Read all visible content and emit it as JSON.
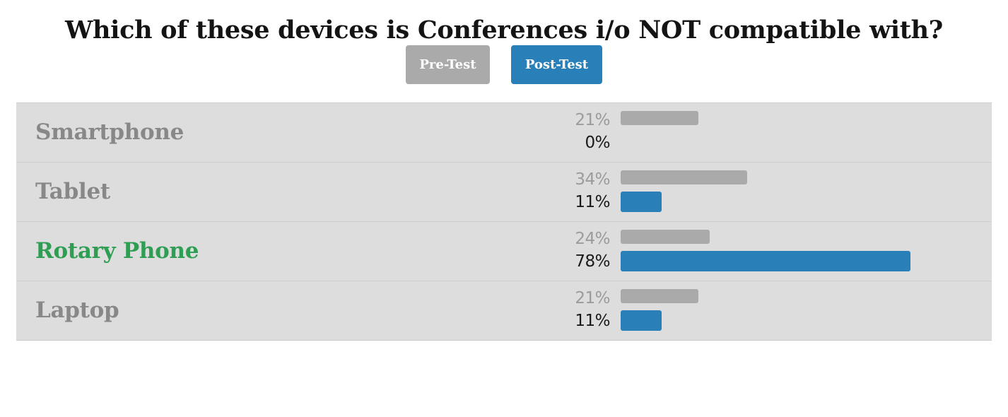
{
  "title": "Which of these devices is Conferences i/o NOT compatible with?",
  "buttons": {
    "pre_label": "Pre-Test",
    "post_label": "Post-Test"
  },
  "colors": {
    "pre": "#aaaaaa",
    "post": "#2980b9",
    "correct": "#2e9e52",
    "label": "#888888"
  },
  "chart_data": {
    "type": "bar",
    "orientation": "horizontal",
    "title": "Which of these devices is Conferences i/o NOT compatible with?",
    "categories": [
      "Smartphone",
      "Tablet",
      "Rotary Phone",
      "Laptop"
    ],
    "correct_category": "Rotary Phone",
    "series": [
      {
        "name": "Pre-Test",
        "values": [
          21,
          34,
          24,
          21
        ],
        "labels": [
          "21%",
          "34%",
          "24%",
          "21%"
        ]
      },
      {
        "name": "Post-Test",
        "values": [
          0,
          11,
          78,
          11
        ],
        "labels": [
          "0%",
          "11%",
          "78%",
          "11%"
        ]
      }
    ],
    "ylim": [
      0,
      100
    ]
  }
}
